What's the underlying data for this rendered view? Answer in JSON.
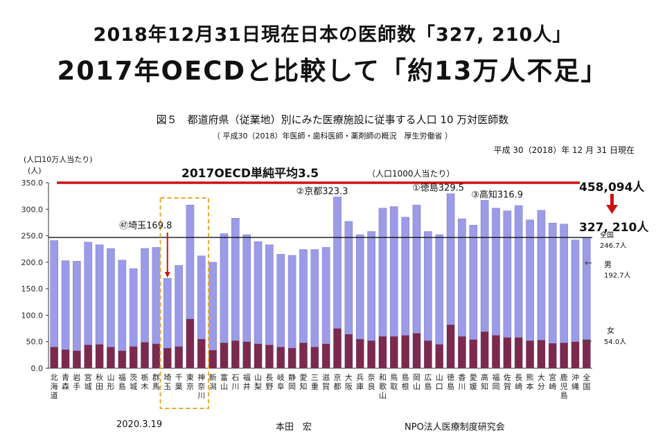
{
  "header": {
    "line1": "2018年12月31日現在日本の医師数「327, 210人」",
    "line2": "2017年OECDと比較して「約13万人不足」"
  },
  "figure": {
    "title": "図５　都道府県（従業地）別にみた医療施設に従事する人口 10 万対医師数",
    "source": "（ 平成30（2018）年医師・歯科医師・薬剤師の概況　厚生労働省 ）",
    "as_of": "平成 30（2018）年 12 月 31 日現在"
  },
  "footer": {
    "date": "2020.3.19",
    "author": "本田　宏",
    "org": "NPO法人医療制度研究会"
  },
  "colors": {
    "total": "#9b9be8",
    "female": "#7b2a4e",
    "oecd_line": "#cc1111",
    "highlight_box": "#e8a92c",
    "arrow": "#cc1111"
  },
  "chart_data": {
    "type": "bar",
    "title": "",
    "ylabel": [
      "(人口10万人当たり)",
      "(人)"
    ],
    "ylim": [
      0,
      350
    ],
    "yticks": [
      "0.0",
      "50.0",
      "100.0",
      "150.0",
      "200.0",
      "250.0",
      "300.0",
      "350.0"
    ],
    "categories": [
      "北海道",
      "青森",
      "岩手",
      "宮城",
      "秋田",
      "山形",
      "福島",
      "茨城",
      "栃木",
      "群馬",
      "埼玉",
      "千葉",
      "東京",
      "神奈川",
      "新潟",
      "富山",
      "石川",
      "福井",
      "山梨",
      "長野",
      "岐阜",
      "静岡",
      "愛知",
      "三重",
      "滋賀",
      "京都",
      "大阪",
      "兵庫",
      "奈良",
      "和歌山",
      "鳥取",
      "島根",
      "岡山",
      "広島",
      "山口",
      "徳島",
      "香川",
      "愛媛",
      "高知",
      "福岡",
      "佐賀",
      "長崎",
      "熊本",
      "大分",
      "宮崎",
      "鹿児島",
      "沖縄",
      "全国"
    ],
    "series": [
      {
        "values": [
          241,
          203,
          202,
          238,
          233,
          226,
          204,
          188,
          226,
          228,
          169.8,
          194,
          308,
          212,
          200,
          254,
          283,
          252,
          239,
          233,
          215,
          213,
          224,
          224,
          228,
          323.3,
          277,
          252,
          258,
          302,
          305,
          285,
          308,
          258,
          252,
          329.5,
          282,
          270,
          316.9,
          302,
          297,
          307,
          280,
          298,
          274,
          272,
          242,
          246.7
        ]
      },
      {
        "values": [
          40,
          35,
          33,
          44,
          45,
          40,
          33,
          41,
          49,
          46,
          38,
          41,
          93,
          55,
          34,
          48,
          52,
          50,
          46,
          44,
          40,
          38,
          48,
          40,
          46,
          75,
          64,
          55,
          52,
          60,
          60,
          62,
          66,
          52,
          45,
          82,
          60,
          54,
          69,
          62,
          58,
          58,
          52,
          53,
          47,
          48,
          50,
          54.0
        ]
      }
    ],
    "reference_lines": [
      {
        "label": "2017OECD単純平均3.5",
        "value": 350
      },
      {
        "label": "全国",
        "value": 246.7
      }
    ],
    "annotations": {
      "kyoto": "②京都323.3",
      "tokushima": "①徳島329.5",
      "kochi": "③高知316.9",
      "saitama": "㊼埼玉169.8",
      "national": "全国",
      "national_value": "246.7人",
      "male": "男",
      "male_value": "192.7人",
      "female": "女",
      "female_value": "54.0人",
      "oecd": "2017OECD単純平均3.5",
      "per1000": "（人口1000人当たり）",
      "oecd_total": "458,094人",
      "current_total": "327, 210人"
    },
    "highlight": {
      "from": "埼玉",
      "to": "神奈川"
    },
    "grid": false
  }
}
